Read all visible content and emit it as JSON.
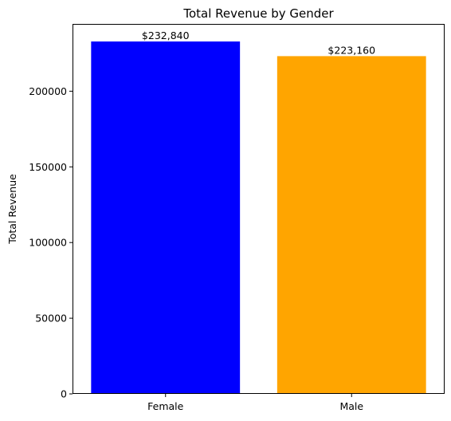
{
  "chart_data": {
    "type": "bar",
    "title": "Total Revenue by Gender",
    "xlabel": "",
    "ylabel": "Total Revenue",
    "categories": [
      "Female",
      "Male"
    ],
    "values": [
      232840,
      223160
    ],
    "data_labels": [
      "$232,840",
      "$223,160"
    ],
    "colors": [
      "#0000ff",
      "#ffa500"
    ],
    "ylim": [
      0,
      244449
    ],
    "yticks": [
      0,
      50000,
      100000,
      150000,
      200000
    ],
    "ytick_labels": [
      "0",
      "50000",
      "100000",
      "150000",
      "200000"
    ],
    "grid": false,
    "legend": "none"
  }
}
